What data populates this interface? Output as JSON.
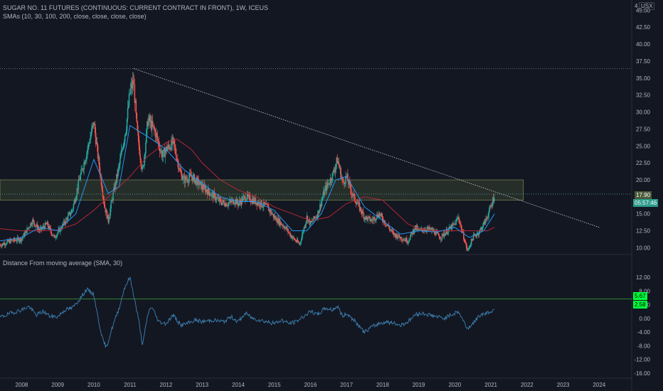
{
  "header": {
    "title": "SUGAR NO. 11 FUTURES (CONTINUOUS: CURRENT CONTRACT IN FRONT), 1W, ICEUS",
    "sma_label": "SMAs (10, 30, 100, 200, close, close, close, close)",
    "indicator_label": "Distance From moving average (SMA, 30)",
    "currency": "USX",
    "top_num": "4"
  },
  "price_labels": {
    "last_price": "17.90",
    "countdown": "05:57:46",
    "indicator_value_1": "5.67",
    "indicator_value_2": "2.58"
  },
  "colors": {
    "background": "#131722",
    "up": "#26a69a",
    "down": "#ef5350",
    "sma_fast": "#2196f3",
    "sma_slow": "#b22833",
    "indicator": "#3d82b3",
    "zone": "#4a5a3a",
    "accent_green": "#00ff3b"
  },
  "chart_data": [
    {
      "type": "candlestick",
      "title": "SUGAR NO. 11 FUTURES (CONTINUOUS: CURRENT CONTRACT IN FRONT), 1W, ICEUS",
      "y_ticks": [
        "10.00",
        "12.50",
        "15.00",
        "17.50",
        "20.00",
        "22.50",
        "25.00",
        "27.50",
        "30.00",
        "32.50",
        "35.00",
        "37.50",
        "40.00",
        "42.50",
        "45.00"
      ],
      "ylim": [
        9.0,
        46.5
      ],
      "x_ticks": [
        "2008",
        "2009",
        "2010",
        "2011",
        "2012",
        "2013",
        "2014",
        "2015",
        "2016",
        "2017",
        "2018",
        "2019",
        "2020",
        "2021",
        "2022",
        "2023",
        "2024"
      ],
      "xlim": [
        2007.4,
        2024.9
      ],
      "close_path": [
        [
          2007.4,
          10.4
        ],
        [
          2007.7,
          11.0
        ],
        [
          2008.0,
          11.3
        ],
        [
          2008.3,
          14.0
        ],
        [
          2008.5,
          12.5
        ],
        [
          2008.7,
          13.5
        ],
        [
          2008.9,
          11.5
        ],
        [
          2009.1,
          13.0
        ],
        [
          2009.4,
          15.5
        ],
        [
          2009.6,
          20.0
        ],
        [
          2009.8,
          24.0
        ],
        [
          2010.0,
          28.5
        ],
        [
          2010.1,
          24.0
        ],
        [
          2010.3,
          16.0
        ],
        [
          2010.4,
          14.0
        ],
        [
          2010.5,
          17.0
        ],
        [
          2010.7,
          22.0
        ],
        [
          2010.9,
          28.0
        ],
        [
          2011.0,
          33.0
        ],
        [
          2011.1,
          34.5
        ],
        [
          2011.2,
          27.0
        ],
        [
          2011.35,
          21.0
        ],
        [
          2011.5,
          29.0
        ],
        [
          2011.7,
          27.0
        ],
        [
          2011.9,
          23.5
        ],
        [
          2012.0,
          24.5
        ],
        [
          2012.2,
          25.5
        ],
        [
          2012.4,
          21.0
        ],
        [
          2012.5,
          20.0
        ],
        [
          2012.7,
          20.5
        ],
        [
          2012.9,
          19.5
        ],
        [
          2013.0,
          19.0
        ],
        [
          2013.3,
          17.7
        ],
        [
          2013.5,
          16.8
        ],
        [
          2013.7,
          16.5
        ],
        [
          2013.9,
          17.0
        ],
        [
          2014.0,
          16.5
        ],
        [
          2014.2,
          17.5
        ],
        [
          2014.4,
          17.0
        ],
        [
          2014.6,
          16.5
        ],
        [
          2014.8,
          16.0
        ],
        [
          2015.0,
          14.5
        ],
        [
          2015.3,
          13.0
        ],
        [
          2015.5,
          11.5
        ],
        [
          2015.7,
          10.5
        ],
        [
          2015.9,
          14.5
        ],
        [
          2016.0,
          13.5
        ],
        [
          2016.2,
          15.0
        ],
        [
          2016.4,
          18.5
        ],
        [
          2016.6,
          20.5
        ],
        [
          2016.75,
          23.0
        ],
        [
          2016.9,
          19.5
        ],
        [
          2017.0,
          20.5
        ],
        [
          2017.15,
          18.0
        ],
        [
          2017.3,
          16.5
        ],
        [
          2017.5,
          14.5
        ],
        [
          2017.7,
          14.0
        ],
        [
          2017.9,
          15.0
        ],
        [
          2018.1,
          13.5
        ],
        [
          2018.3,
          12.0
        ],
        [
          2018.5,
          11.5
        ],
        [
          2018.7,
          11.0
        ],
        [
          2018.9,
          13.0
        ],
        [
          2019.0,
          12.5
        ],
        [
          2019.2,
          12.8
        ],
        [
          2019.4,
          12.5
        ],
        [
          2019.6,
          11.5
        ],
        [
          2019.8,
          12.5
        ],
        [
          2020.0,
          13.5
        ],
        [
          2020.1,
          14.5
        ],
        [
          2020.25,
          11.5
        ],
        [
          2020.35,
          9.5
        ],
        [
          2020.5,
          11.5
        ],
        [
          2020.7,
          12.5
        ],
        [
          2020.85,
          14.0
        ],
        [
          2021.0,
          16.0
        ],
        [
          2021.1,
          17.9
        ]
      ],
      "sma_fast_path": [
        [
          2007.4,
          11.0
        ],
        [
          2008.0,
          11.5
        ],
        [
          2008.5,
          13.0
        ],
        [
          2009.0,
          12.5
        ],
        [
          2009.5,
          15.0
        ],
        [
          2010.0,
          23.0
        ],
        [
          2010.4,
          18.0
        ],
        [
          2010.7,
          19.0
        ],
        [
          2011.0,
          28.0
        ],
        [
          2011.3,
          27.0
        ],
        [
          2011.6,
          26.0
        ],
        [
          2012.0,
          24.5
        ],
        [
          2012.5,
          21.5
        ],
        [
          2013.0,
          19.5
        ],
        [
          2013.5,
          17.5
        ],
        [
          2014.0,
          16.8
        ],
        [
          2014.5,
          16.8
        ],
        [
          2015.0,
          15.5
        ],
        [
          2015.5,
          12.5
        ],
        [
          2015.9,
          12.5
        ],
        [
          2016.3,
          15.0
        ],
        [
          2016.7,
          20.0
        ],
        [
          2017.0,
          20.5
        ],
        [
          2017.5,
          16.0
        ],
        [
          2018.0,
          14.0
        ],
        [
          2018.5,
          12.0
        ],
        [
          2019.0,
          12.5
        ],
        [
          2019.5,
          12.3
        ],
        [
          2020.0,
          13.0
        ],
        [
          2020.4,
          11.5
        ],
        [
          2020.8,
          12.5
        ],
        [
          2021.1,
          15.0
        ]
      ],
      "sma_slow_path": [
        [
          2007.4,
          12.8
        ],
        [
          2008.0,
          12.5
        ],
        [
          2008.5,
          12.5
        ],
        [
          2009.0,
          12.6
        ],
        [
          2009.5,
          13.5
        ],
        [
          2010.0,
          15.5
        ],
        [
          2010.5,
          18.0
        ],
        [
          2011.0,
          20.5
        ],
        [
          2011.5,
          23.5
        ],
        [
          2012.0,
          25.5
        ],
        [
          2012.3,
          26.0
        ],
        [
          2012.7,
          24.5
        ],
        [
          2013.0,
          22.5
        ],
        [
          2013.5,
          20.0
        ],
        [
          2014.0,
          18.5
        ],
        [
          2014.5,
          17.5
        ],
        [
          2015.0,
          16.0
        ],
        [
          2015.5,
          15.0
        ],
        [
          2016.0,
          14.0
        ],
        [
          2016.5,
          14.5
        ],
        [
          2017.0,
          16.5
        ],
        [
          2017.5,
          17.5
        ],
        [
          2018.0,
          17.0
        ],
        [
          2018.3,
          15.5
        ],
        [
          2018.7,
          13.5
        ],
        [
          2019.0,
          12.8
        ],
        [
          2019.5,
          12.5
        ],
        [
          2020.0,
          12.5
        ],
        [
          2020.5,
          12.5
        ],
        [
          2020.9,
          12.5
        ],
        [
          2021.1,
          13.0
        ]
      ],
      "resistance_line": [
        [
          2011.1,
          36.4
        ],
        [
          2024.0,
          13.0
        ]
      ],
      "high_line": 36.4,
      "zone": [
        17.0,
        20.0
      ],
      "zone_x": [
        2007.4,
        2021.9
      ],
      "last_price": 17.9
    },
    {
      "type": "line",
      "title": "Distance From moving average (SMA, 30)",
      "y_ticks": [
        "-16.00",
        "-12.00",
        "-8.00",
        "-4.00",
        "0.00",
        "4.00",
        "8.00",
        "12.00"
      ],
      "ylim": [
        -17.5,
        14.5
      ],
      "level": 5.67,
      "path": [
        [
          2007.4,
          0.3
        ],
        [
          2007.7,
          1.5
        ],
        [
          2008.0,
          2.5
        ],
        [
          2008.2,
          3.5
        ],
        [
          2008.4,
          1.0
        ],
        [
          2008.6,
          2.0
        ],
        [
          2008.8,
          0.5
        ],
        [
          2009.0,
          0.5
        ],
        [
          2009.2,
          2.5
        ],
        [
          2009.4,
          3.0
        ],
        [
          2009.6,
          5.5
        ],
        [
          2009.8,
          8.5
        ],
        [
          2010.0,
          7.0
        ],
        [
          2010.1,
          1.0
        ],
        [
          2010.25,
          -6.5
        ],
        [
          2010.35,
          -8.5
        ],
        [
          2010.5,
          -3.0
        ],
        [
          2010.7,
          3.0
        ],
        [
          2010.85,
          9.0
        ],
        [
          2011.0,
          12.0
        ],
        [
          2011.1,
          7.0
        ],
        [
          2011.25,
          -1.0
        ],
        [
          2011.35,
          -8.0
        ],
        [
          2011.5,
          1.5
        ],
        [
          2011.6,
          3.5
        ],
        [
          2011.8,
          -1.0
        ],
        [
          2012.0,
          -1.5
        ],
        [
          2012.2,
          1.0
        ],
        [
          2012.4,
          -2.0
        ],
        [
          2012.6,
          -1.5
        ],
        [
          2012.8,
          -0.5
        ],
        [
          2013.0,
          -1.0
        ],
        [
          2013.3,
          -0.5
        ],
        [
          2013.6,
          -1.0
        ],
        [
          2013.8,
          0.5
        ],
        [
          2014.0,
          -1.0
        ],
        [
          2014.2,
          1.5
        ],
        [
          2014.4,
          0.0
        ],
        [
          2014.6,
          -0.5
        ],
        [
          2014.8,
          -1.0
        ],
        [
          2015.0,
          -1.5
        ],
        [
          2015.2,
          -0.5
        ],
        [
          2015.4,
          -1.5
        ],
        [
          2015.6,
          -1.0
        ],
        [
          2015.8,
          0.5
        ],
        [
          2016.0,
          2.0
        ],
        [
          2016.2,
          1.0
        ],
        [
          2016.4,
          3.0
        ],
        [
          2016.6,
          2.5
        ],
        [
          2016.75,
          3.5
        ],
        [
          2016.9,
          0.5
        ],
        [
          2017.0,
          1.5
        ],
        [
          2017.2,
          -0.5
        ],
        [
          2017.4,
          -3.0
        ],
        [
          2017.5,
          -4.0
        ],
        [
          2017.7,
          -2.5
        ],
        [
          2017.9,
          -1.5
        ],
        [
          2018.1,
          -1.0
        ],
        [
          2018.3,
          -1.5
        ],
        [
          2018.5,
          -2.0
        ],
        [
          2018.7,
          -1.0
        ],
        [
          2018.9,
          1.0
        ],
        [
          2019.1,
          1.5
        ],
        [
          2019.3,
          1.0
        ],
        [
          2019.5,
          0.5
        ],
        [
          2019.7,
          0.0
        ],
        [
          2019.9,
          1.0
        ],
        [
          2020.1,
          2.0
        ],
        [
          2020.25,
          -1.0
        ],
        [
          2020.35,
          -3.0
        ],
        [
          2020.5,
          -1.5
        ],
        [
          2020.7,
          1.0
        ],
        [
          2020.85,
          1.5
        ],
        [
          2021.0,
          2.0
        ],
        [
          2021.1,
          2.6
        ]
      ]
    }
  ]
}
